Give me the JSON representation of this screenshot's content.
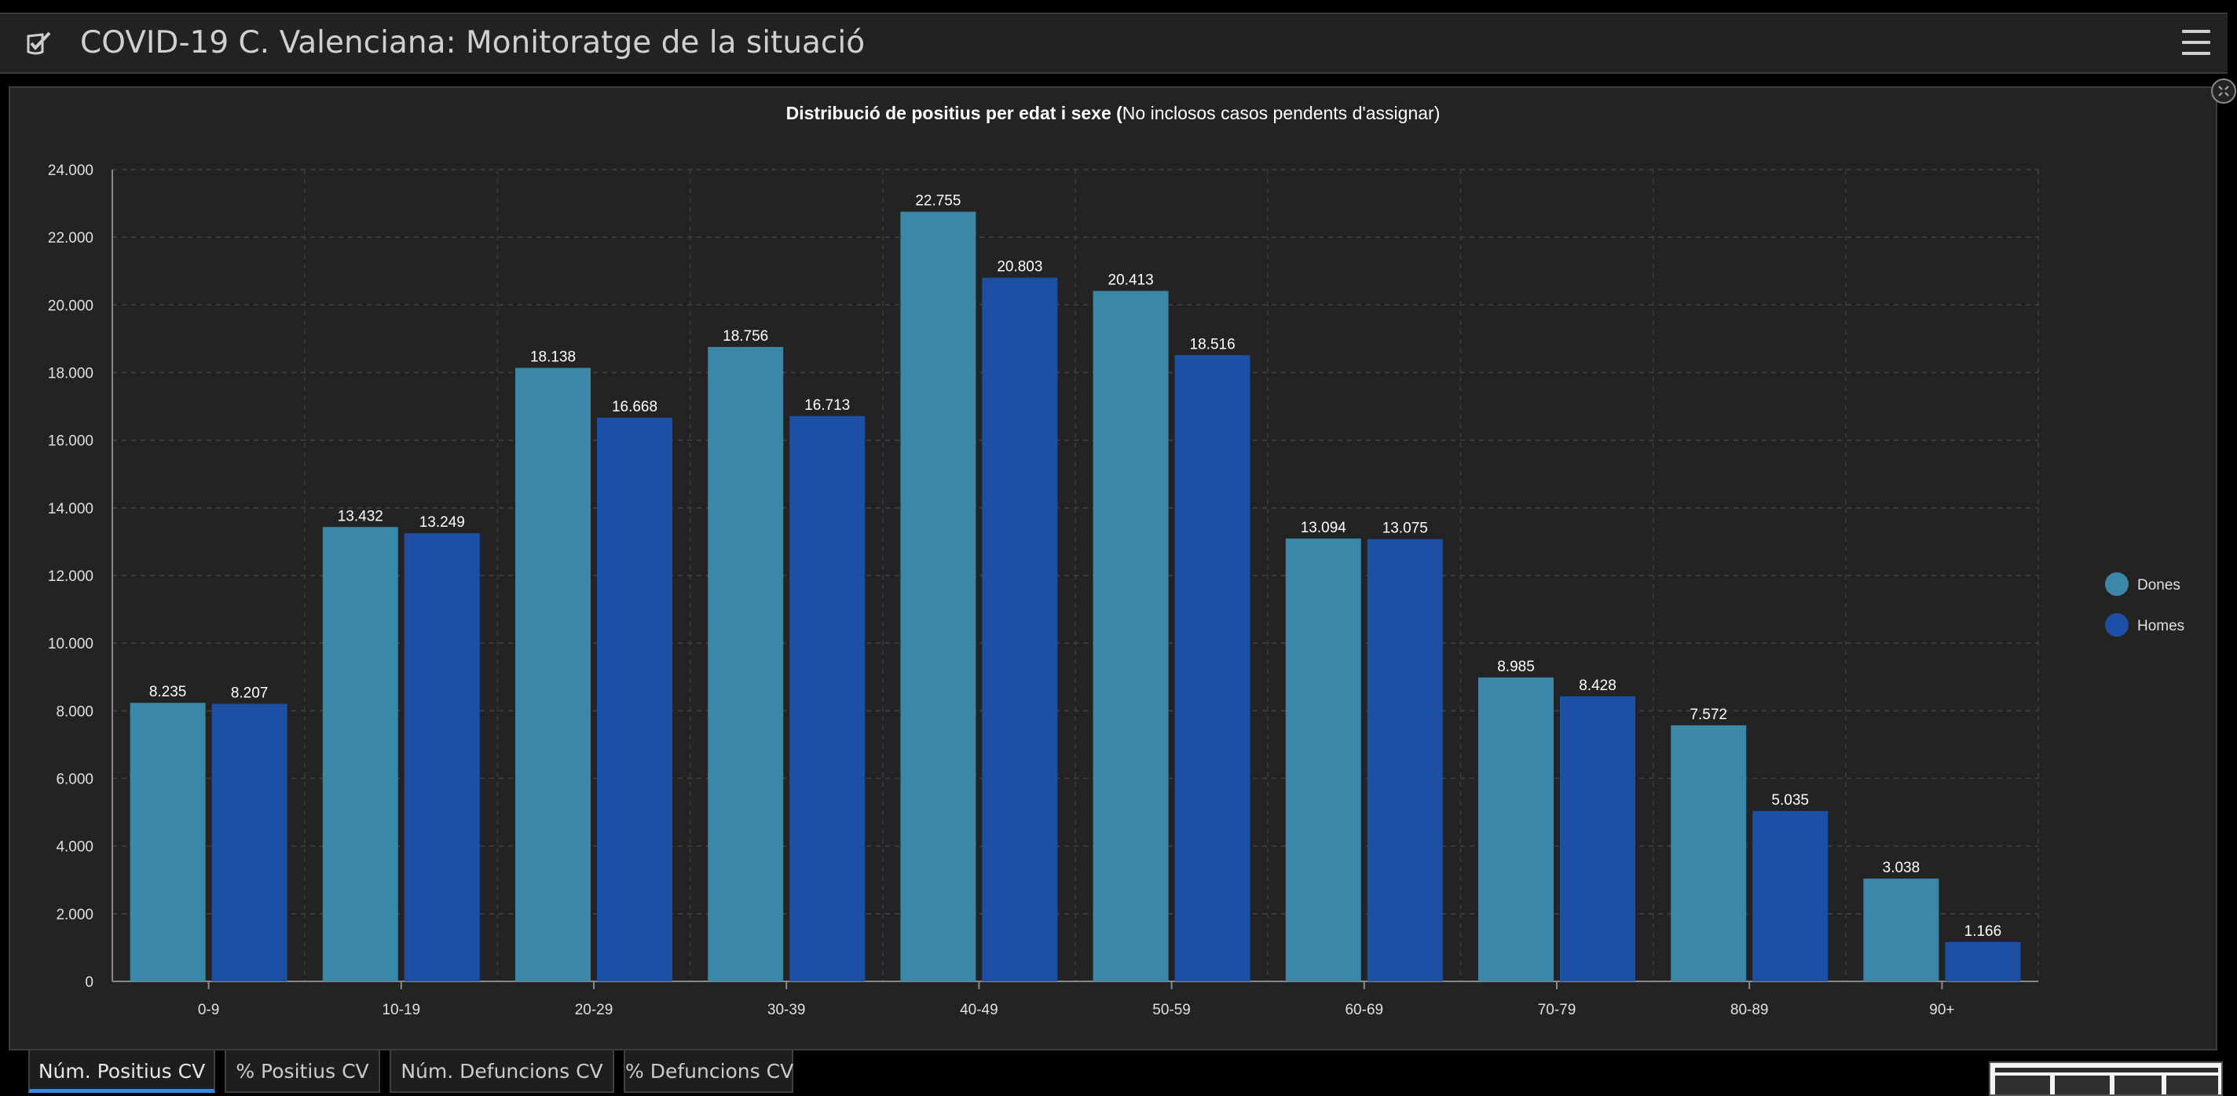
{
  "header": {
    "title": "COVID-19 C. Valenciana: Monitoratge de la situació",
    "logo_icon": "shield-check-icon",
    "menu_icon": "hamburger-menu-icon"
  },
  "chart_data": {
    "type": "bar",
    "title_bold": "Distribució de positius per edat i sexe (",
    "title_normal": "No inclosos casos pendents d'assignar)",
    "xlabel": "",
    "ylabel": "",
    "categories": [
      "0-9",
      "10-19",
      "20-29",
      "30-39",
      "40-49",
      "50-59",
      "60-69",
      "70-79",
      "80-89",
      "90+"
    ],
    "series": [
      {
        "name": "Dones",
        "color": "#3a87a8",
        "values": [
          8235,
          13432,
          18138,
          18756,
          22755,
          20413,
          13094,
          8985,
          7572,
          3038
        ],
        "labels": [
          "8.235",
          "13.432",
          "18.138",
          "18.756",
          "22.755",
          "20.413",
          "13.094",
          "8.985",
          "7.572",
          "3.038"
        ]
      },
      {
        "name": "Homes",
        "color": "#1d50a5",
        "values": [
          8207,
          13249,
          16668,
          16713,
          20803,
          18516,
          13075,
          8428,
          5035,
          1166
        ],
        "labels": [
          "8.207",
          "13.249",
          "16.668",
          "16.713",
          "20.803",
          "18.516",
          "13.075",
          "8.428",
          "5.035",
          "1.166"
        ]
      }
    ],
    "ylim": [
      0,
      24000
    ],
    "y_ticks": [
      0,
      2000,
      4000,
      6000,
      8000,
      10000,
      12000,
      14000,
      16000,
      18000,
      20000,
      22000,
      24000
    ],
    "y_tick_labels": [
      "0",
      "2.000",
      "4.000",
      "6.000",
      "8.000",
      "10.000",
      "12.000",
      "14.000",
      "16.000",
      "18.000",
      "20.000",
      "22.000",
      "24.000"
    ],
    "grid": true,
    "legend_position": "right"
  },
  "tabs": [
    {
      "label": "Núm. Positius CV",
      "active": true
    },
    {
      "label": "% Positius CV",
      "active": false
    },
    {
      "label": "Núm. Defuncions CV",
      "active": false
    },
    {
      "label": "% Defuncions CV",
      "active": false
    }
  ],
  "colors": {
    "background": "#000000",
    "panel": "#232323",
    "active_tab_indicator": "#3a86d8"
  }
}
